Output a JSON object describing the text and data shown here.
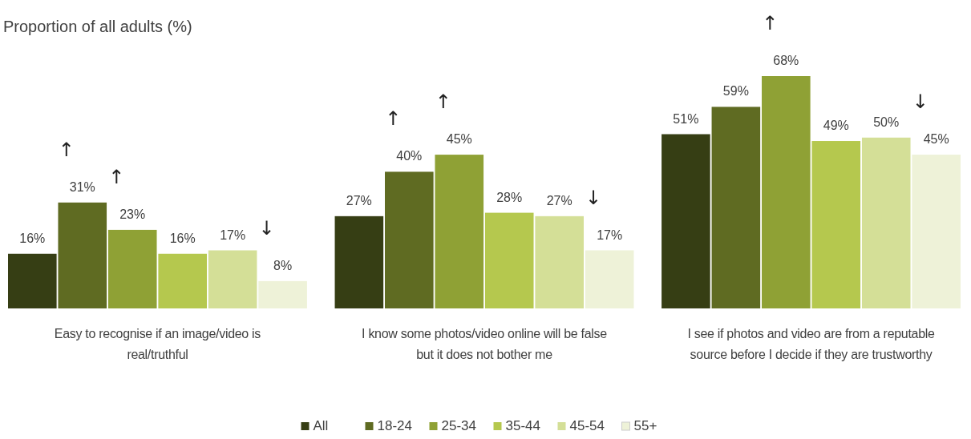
{
  "chart_data": {
    "type": "bar",
    "title": "Proportion of all adults (%)",
    "categories": [
      "Easy to recognise if an image/video is real/truthful",
      "I know some photos/video online will be false but it does not bother me",
      "I see if photos and video are from a reputable source before I decide if they are trustworthy"
    ],
    "series": [
      {
        "name": "All",
        "color": "#363e14",
        "values": [
          16,
          27,
          51
        ],
        "value_labels": [
          "16%",
          "27%",
          "51%"
        ]
      },
      {
        "name": "18-24",
        "color": "#5f6b22",
        "values": [
          31,
          40,
          59
        ],
        "value_labels": [
          "↑\n31%",
          "↑\n40%",
          "59%"
        ]
      },
      {
        "name": "25-34",
        "color": "#8fa135",
        "values": [
          23,
          45,
          68
        ],
        "value_labels": [
          "↑\n23%",
          "↑\n45%",
          "↑\n68%"
        ]
      },
      {
        "name": "35-44",
        "color": "#b5c84e",
        "values": [
          16,
          28,
          49
        ],
        "value_labels": [
          "16%",
          "28%",
          "49%"
        ]
      },
      {
        "name": "45-54",
        "color": "#d4df97",
        "values": [
          17,
          27,
          50
        ],
        "value_labels": [
          "17%",
          "27%",
          "50%"
        ]
      },
      {
        "name": "55+",
        "color": "#eef2d8",
        "values": [
          8,
          17,
          45
        ],
        "value_labels": [
          "↓\n8%",
          "↓\n17%",
          "↓\n45%"
        ]
      }
    ],
    "legend": "bottom"
  }
}
